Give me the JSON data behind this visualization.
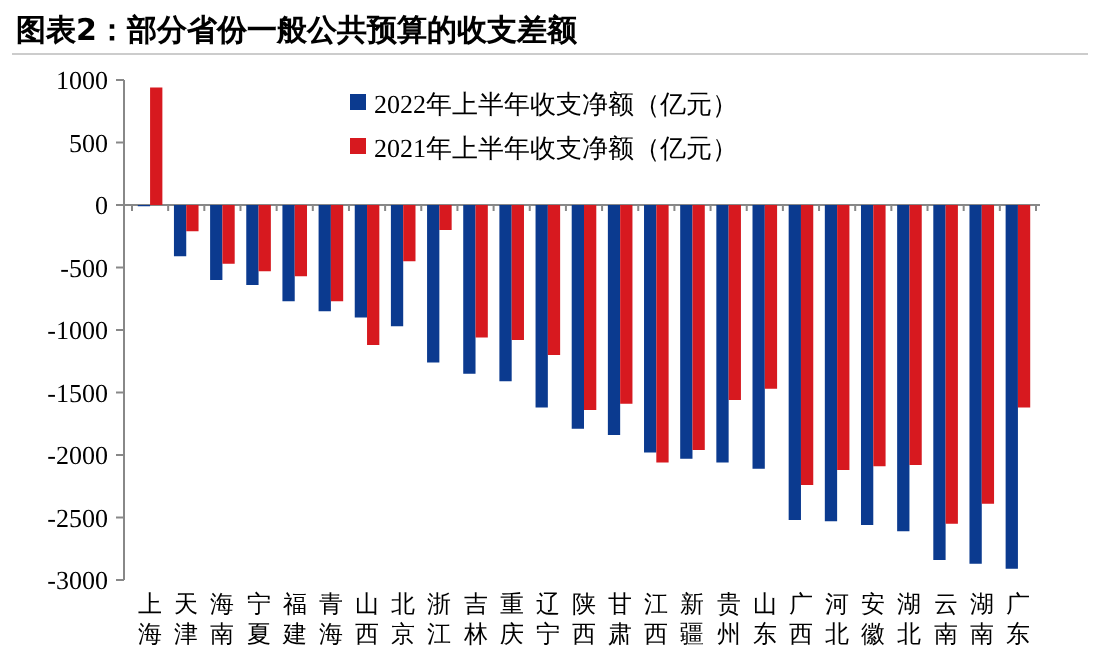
{
  "chart_data": {
    "type": "bar",
    "title": "图表2：部分省份一般公共预算的收支差额",
    "categories": [
      "上海",
      "天津",
      "海南",
      "宁夏",
      "福建",
      "青海",
      "山西",
      "北京",
      "浙江",
      "吉林",
      "重庆",
      "辽宁",
      "陕西",
      "甘肃",
      "江西",
      "新疆",
      "贵州",
      "山东",
      "广西",
      "河北",
      "安徽",
      "湖北",
      "云南",
      "湖南",
      "广东"
    ],
    "series": [
      {
        "name": "2022年上半年收支净额（亿元）",
        "color": "#0b3a8f",
        "values": [
          -10,
          -410,
          -600,
          -640,
          -770,
          -850,
          -900,
          -970,
          -1260,
          -1350,
          -1410,
          -1620,
          -1790,
          -1840,
          -1980,
          -2030,
          -2060,
          -2110,
          -2520,
          -2530,
          -2560,
          -2610,
          -2840,
          -2870,
          -2910
        ]
      },
      {
        "name": "2021年上半年收支净额（亿元）",
        "color": "#d7191f",
        "values": [
          940,
          -210,
          -470,
          -530,
          -570,
          -770,
          -1120,
          -450,
          -200,
          -1060,
          -1080,
          -1200,
          -1640,
          -1590,
          -2060,
          -1960,
          -1560,
          -1470,
          -2240,
          -2120,
          -2090,
          -2080,
          -2550,
          -2390,
          -1620
        ]
      }
    ],
    "ylim": [
      -3000,
      1000
    ],
    "yticks": [
      -3000,
      -2500,
      -2000,
      -1500,
      -1000,
      -500,
      0,
      500,
      1000
    ],
    "legend": "top"
  }
}
